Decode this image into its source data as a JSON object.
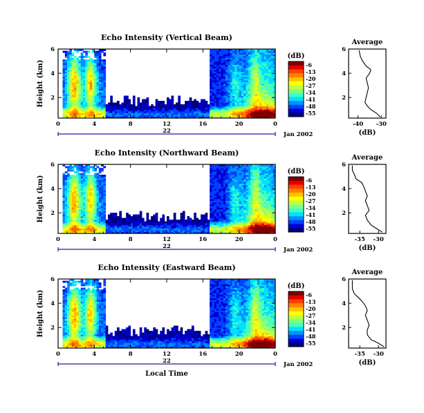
{
  "figure": {
    "xlabel": "Local Time",
    "date_label": "Jan 2002",
    "day_label": "22",
    "colorbar_title": "(dB)",
    "colorbar_ticks": [
      "-6",
      "-13",
      "-20",
      "-27",
      "-34",
      "-41",
      "-48",
      "-55"
    ],
    "colormap": [
      "#800000",
      "#e00000",
      "#ff4000",
      "#ff8000",
      "#ffc000",
      "#ffff00",
      "#c0ff40",
      "#80ff80",
      "#40ffc0",
      "#00e0ff",
      "#0090ff",
      "#0040ff",
      "#0000d0",
      "#000080"
    ]
  },
  "chart_data": [
    {
      "type": "heatmap",
      "title": "Echo Intensity (Vertical Beam)",
      "xlabel": "",
      "ylabel": "Height (km)",
      "x_ticks": [
        "0",
        "4",
        "8",
        "12",
        "16",
        "20",
        "0"
      ],
      "y_ticks": [
        "6",
        "4",
        "2"
      ],
      "xlim": [
        0,
        24
      ],
      "ylim": [
        0.3,
        6
      ],
      "colorbar_range": [
        -55,
        -6
      ],
      "profile_seed": 1,
      "profile": {
        "type": "line",
        "title": "Average",
        "xlabel": "(dB)",
        "x_ticks": [
          "-40",
          "-30"
        ],
        "y_ticks": [
          "6",
          "4",
          "2"
        ],
        "xlim": [
          -44,
          -28
        ],
        "ylim": [
          0.3,
          6
        ],
        "points": [
          [
            -30.5,
            0.4
          ],
          [
            -32.0,
            0.7
          ],
          [
            -34.5,
            1.0
          ],
          [
            -36.0,
            1.3
          ],
          [
            -37.0,
            1.6
          ],
          [
            -36.5,
            2.0
          ],
          [
            -36.0,
            2.4
          ],
          [
            -35.5,
            2.8
          ],
          [
            -36.0,
            3.2
          ],
          [
            -36.5,
            3.6
          ],
          [
            -35.0,
            4.0
          ],
          [
            -34.5,
            4.3
          ],
          [
            -36.5,
            4.6
          ],
          [
            -38.0,
            5.0
          ],
          [
            -39.0,
            5.4
          ],
          [
            -39.5,
            5.9
          ]
        ]
      }
    },
    {
      "type": "heatmap",
      "title": "Echo Intensity (Northward Beam)",
      "xlabel": "",
      "ylabel": "Height (km)",
      "x_ticks": [
        "0",
        "4",
        "8",
        "12",
        "16",
        "20",
        "0"
      ],
      "y_ticks": [
        "6",
        "4",
        "2"
      ],
      "xlim": [
        0,
        24
      ],
      "ylim": [
        0.3,
        6
      ],
      "colorbar_range": [
        -55,
        -6
      ],
      "profile_seed": 2,
      "profile": {
        "type": "line",
        "title": "Average",
        "xlabel": "(dB)",
        "x_ticks": [
          "-35",
          "-30"
        ],
        "y_ticks": [
          "6",
          "4",
          "2"
        ],
        "xlim": [
          -38,
          -28
        ],
        "ylim": [
          0.3,
          6
        ],
        "points": [
          [
            -29.0,
            0.4
          ],
          [
            -30.5,
            0.7
          ],
          [
            -32.0,
            1.0
          ],
          [
            -33.0,
            1.4
          ],
          [
            -33.5,
            1.8
          ],
          [
            -32.5,
            2.2
          ],
          [
            -33.0,
            2.6
          ],
          [
            -33.5,
            3.0
          ],
          [
            -33.0,
            3.4
          ],
          [
            -33.5,
            3.8
          ],
          [
            -34.0,
            4.2
          ],
          [
            -34.5,
            4.5
          ],
          [
            -36.0,
            4.8
          ],
          [
            -36.5,
            5.2
          ],
          [
            -37.0,
            5.5
          ],
          [
            -37.0,
            5.9
          ]
        ]
      }
    },
    {
      "type": "heatmap",
      "title": "Echo Intensity (Eastward Beam)",
      "xlabel": "Local Time",
      "ylabel": "Height (km)",
      "x_ticks": [
        "0",
        "4",
        "8",
        "12",
        "16",
        "20",
        "0"
      ],
      "y_ticks": [
        "6",
        "4",
        "2"
      ],
      "xlim": [
        0,
        24
      ],
      "ylim": [
        0.3,
        6
      ],
      "colorbar_range": [
        -55,
        -6
      ],
      "profile_seed": 3,
      "profile": {
        "type": "line",
        "title": "Average",
        "xlabel": "(dB)",
        "x_ticks": [
          "-35",
          "-30"
        ],
        "y_ticks": [
          "6",
          "4",
          "2"
        ],
        "xlim": [
          -38,
          -28
        ],
        "ylim": [
          0.3,
          6
        ],
        "points": [
          [
            -28.5,
            0.4
          ],
          [
            -30.0,
            0.7
          ],
          [
            -32.0,
            1.0
          ],
          [
            -33.0,
            1.4
          ],
          [
            -33.0,
            1.8
          ],
          [
            -32.5,
            2.2
          ],
          [
            -33.0,
            2.6
          ],
          [
            -33.5,
            3.0
          ],
          [
            -33.0,
            3.4
          ],
          [
            -33.5,
            3.8
          ],
          [
            -34.5,
            4.2
          ],
          [
            -35.5,
            4.5
          ],
          [
            -36.5,
            4.8
          ],
          [
            -37.0,
            5.2
          ],
          [
            -37.0,
            5.6
          ],
          [
            -37.0,
            5.9
          ]
        ]
      }
    }
  ]
}
